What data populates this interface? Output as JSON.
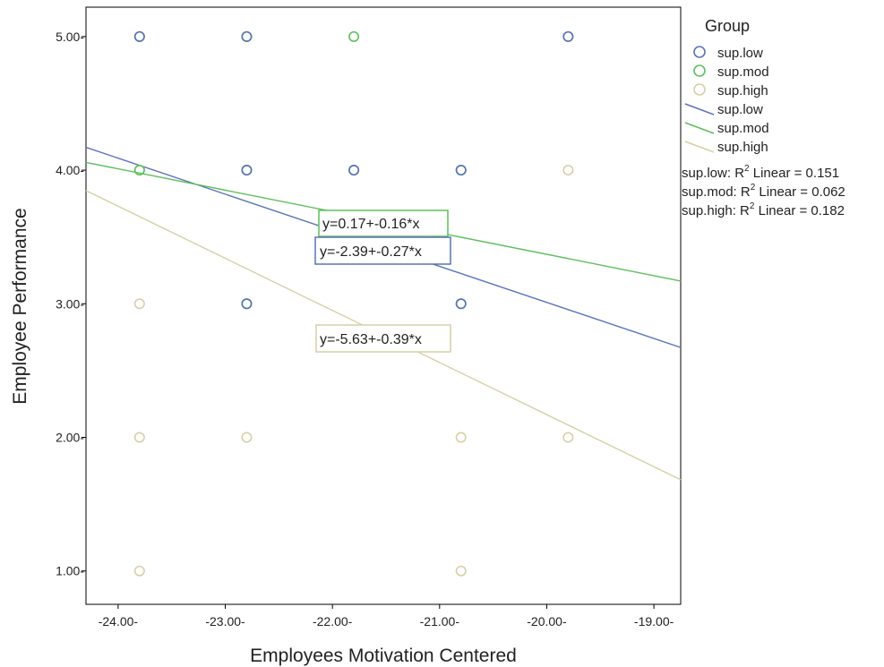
{
  "chart_data": {
    "type": "scatter",
    "xlabel": "Employees Motivation Centered",
    "ylabel": "Employee Performance",
    "xlim": [
      -24.3,
      -18.75
    ],
    "ylim": [
      0.75,
      5.22
    ],
    "x_ticks": [
      -24,
      -23,
      -22,
      -21,
      -20,
      -19
    ],
    "x_tick_labels": [
      "-24.00-",
      "-23.00-",
      "-22.00-",
      "-21.00-",
      "-20.00-",
      "-19.00-"
    ],
    "y_ticks": [
      1,
      2,
      3,
      4,
      5
    ],
    "y_tick_labels": [
      "1.00-",
      "2.00-",
      "3.00-",
      "4.00-",
      "5.00-"
    ],
    "grid": false,
    "legend_title": "Group",
    "legend_position": "right",
    "series": [
      {
        "name": "sup.low",
        "color": "#5b73b8",
        "points": [
          [
            -23.8,
            5
          ],
          [
            -22.8,
            5
          ],
          [
            -22.8,
            4
          ],
          [
            -21.8,
            4
          ],
          [
            -20.8,
            4
          ],
          [
            -22.8,
            3
          ],
          [
            -20.8,
            3
          ],
          [
            -19.8,
            5
          ]
        ],
        "fit": {
          "intercept": -2.39,
          "slope": -0.27,
          "equation": "y=-2.39+-0.27*x",
          "r2_label": "sup.low: R",
          "r2_suffix": " Linear = 0.151"
        }
      },
      {
        "name": "sup.mod",
        "color": "#5cbf5c",
        "points": [
          [
            -23.8,
            5
          ],
          [
            -22.8,
            5
          ],
          [
            -21.8,
            5
          ],
          [
            -19.8,
            5
          ],
          [
            -23.8,
            4
          ],
          [
            -22.8,
            4
          ],
          [
            -21.8,
            4
          ],
          [
            -20.8,
            4
          ],
          [
            -22.8,
            3
          ],
          [
            -20.8,
            3
          ]
        ],
        "fit": {
          "intercept": 0.17,
          "slope": -0.16,
          "equation": "y=0.17+-0.16*x",
          "r2_label": "sup.mod: R",
          "r2_suffix": " Linear = 0.062"
        }
      },
      {
        "name": "sup.high",
        "color": "#d4d1a6",
        "points": [
          [
            -23.8,
            5
          ],
          [
            -22.8,
            5
          ],
          [
            -23.8,
            4
          ],
          [
            -22.8,
            4
          ],
          [
            -21.8,
            4
          ],
          [
            -20.8,
            4
          ],
          [
            -19.8,
            4
          ],
          [
            -23.8,
            3
          ],
          [
            -22.8,
            3
          ],
          [
            -23.8,
            2
          ],
          [
            -22.8,
            2
          ],
          [
            -20.8,
            2
          ],
          [
            -19.8,
            2
          ],
          [
            -23.8,
            1
          ],
          [
            -20.8,
            1
          ]
        ],
        "fit": {
          "intercept": -5.63,
          "slope": -0.39,
          "equation": "y=-5.63+-0.39*x",
          "r2_label": "sup.high: R",
          "r2_suffix": " Linear = 0.182"
        }
      }
    ],
    "r2_superscript": "2"
  }
}
